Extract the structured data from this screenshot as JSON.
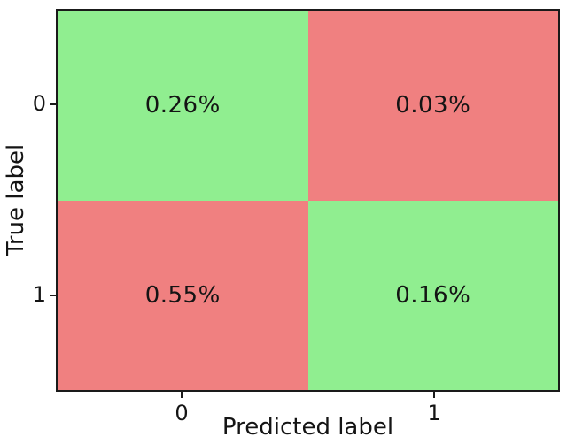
{
  "chart_data": {
    "type": "heatmap",
    "subtype": "confusion-matrix",
    "title": "",
    "xlabel": "Predicted label",
    "ylabel": "True label",
    "x_tick_labels": [
      "0",
      "1"
    ],
    "y_tick_labels": [
      "0",
      "1"
    ],
    "rows": [
      "0",
      "1"
    ],
    "columns": [
      "0",
      "1"
    ],
    "cells": [
      {
        "true_label": "0",
        "predicted_label": "0",
        "value": "0.26%",
        "color": "#90EE90",
        "semantic": "true-negative-correct"
      },
      {
        "true_label": "0",
        "predicted_label": "1",
        "value": "0.03%",
        "color": "#F08080",
        "semantic": "false-positive-incorrect"
      },
      {
        "true_label": "1",
        "predicted_label": "0",
        "value": "0.55%",
        "color": "#F08080",
        "semantic": "false-negative-incorrect"
      },
      {
        "true_label": "1",
        "predicted_label": "1",
        "value": "0.16%",
        "color": "#90EE90",
        "semantic": "true-positive-correct"
      }
    ],
    "colors": {
      "correct_cell": "#90EE90",
      "incorrect_cell": "#F08080",
      "text": "#141414",
      "spine": "#1a1a1a",
      "background": "#ffffff"
    },
    "legend": null,
    "grid": false
  }
}
